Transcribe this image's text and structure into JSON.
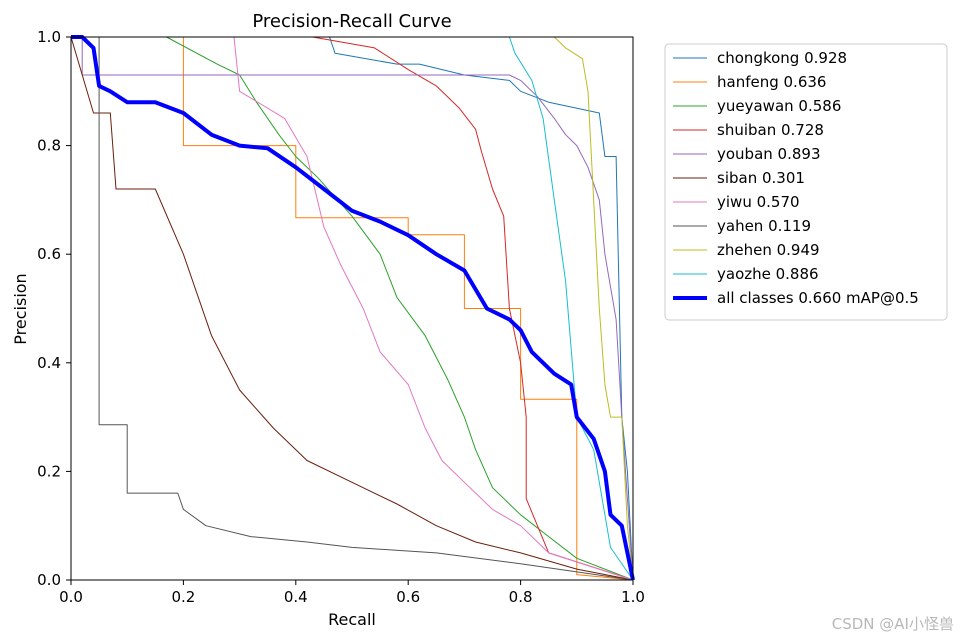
{
  "chart_data": {
    "type": "line",
    "title": "Precision-Recall Curve",
    "xlabel": "Recall",
    "ylabel": "Precision",
    "xlim": [
      0,
      1
    ],
    "ylim": [
      0,
      1
    ],
    "xticks": [
      "0.0",
      "0.2",
      "0.4",
      "0.6",
      "0.8",
      "1.0"
    ],
    "yticks": [
      "0.0",
      "0.2",
      "0.4",
      "0.6",
      "0.8",
      "1.0"
    ],
    "legend_position": "outside-right",
    "series": [
      {
        "name": "chongkong 0.928",
        "color": "#1f77b4",
        "width": 1,
        "points": [
          [
            0,
            1
          ],
          [
            0.46,
            1
          ],
          [
            0.47,
            0.97
          ],
          [
            0.58,
            0.95
          ],
          [
            0.62,
            0.95
          ],
          [
            0.7,
            0.93
          ],
          [
            0.78,
            0.92
          ],
          [
            0.8,
            0.9
          ],
          [
            0.85,
            0.88
          ],
          [
            0.94,
            0.86
          ],
          [
            0.95,
            0.78
          ],
          [
            0.97,
            0.78
          ],
          [
            0.98,
            0.3
          ],
          [
            0.99,
            0.2
          ],
          [
            1,
            0
          ]
        ]
      },
      {
        "name": "hanfeng 0.636",
        "color": "#ff7f0e",
        "width": 1,
        "points": [
          [
            0,
            1
          ],
          [
            0.2,
            1
          ],
          [
            0.2,
            0.8
          ],
          [
            0.4,
            0.8
          ],
          [
            0.4,
            0.667
          ],
          [
            0.6,
            0.667
          ],
          [
            0.6,
            0.636
          ],
          [
            0.7,
            0.636
          ],
          [
            0.7,
            0.5
          ],
          [
            0.8,
            0.5
          ],
          [
            0.8,
            0.333
          ],
          [
            0.9,
            0.333
          ],
          [
            0.9,
            0.01
          ],
          [
            1,
            0
          ]
        ]
      },
      {
        "name": "yueyawan 0.586",
        "color": "#2ca02c",
        "width": 1,
        "points": [
          [
            0.17,
            1
          ],
          [
            0.26,
            0.95
          ],
          [
            0.3,
            0.93
          ],
          [
            0.33,
            0.88
          ],
          [
            0.37,
            0.82
          ],
          [
            0.4,
            0.78
          ],
          [
            0.44,
            0.74
          ],
          [
            0.5,
            0.67
          ],
          [
            0.55,
            0.6
          ],
          [
            0.58,
            0.52
          ],
          [
            0.63,
            0.45
          ],
          [
            0.67,
            0.37
          ],
          [
            0.7,
            0.3
          ],
          [
            0.72,
            0.24
          ],
          [
            0.75,
            0.17
          ],
          [
            0.8,
            0.12
          ],
          [
            0.85,
            0.08
          ],
          [
            0.9,
            0.04
          ],
          [
            1,
            0
          ]
        ]
      },
      {
        "name": "shuiban 0.728",
        "color": "#d62728",
        "width": 1,
        "points": [
          [
            0.43,
            1
          ],
          [
            0.54,
            0.98
          ],
          [
            0.6,
            0.94
          ],
          [
            0.65,
            0.91
          ],
          [
            0.69,
            0.87
          ],
          [
            0.72,
            0.83
          ],
          [
            0.73,
            0.79
          ],
          [
            0.75,
            0.72
          ],
          [
            0.77,
            0.67
          ],
          [
            0.78,
            0.5
          ],
          [
            0.8,
            0.4
          ],
          [
            0.81,
            0.3
          ],
          [
            0.81,
            0.15
          ],
          [
            0.85,
            0.05
          ],
          [
            1,
            0
          ]
        ]
      },
      {
        "name": "youban 0.893",
        "color": "#9467bd",
        "width": 1,
        "points": [
          [
            0,
            1
          ],
          [
            0.02,
            1
          ],
          [
            0.02,
            0.93
          ],
          [
            0.78,
            0.93
          ],
          [
            0.8,
            0.92
          ],
          [
            0.83,
            0.89
          ],
          [
            0.86,
            0.85
          ],
          [
            0.88,
            0.82
          ],
          [
            0.9,
            0.8
          ],
          [
            0.92,
            0.76
          ],
          [
            0.94,
            0.7
          ],
          [
            0.95,
            0.6
          ],
          [
            0.97,
            0.48
          ],
          [
            0.98,
            0.3
          ],
          [
            0.99,
            0.15
          ],
          [
            1,
            0
          ]
        ]
      },
      {
        "name": "siban 0.301",
        "color": "#6b1f0b",
        "width": 1,
        "points": [
          [
            0,
            1
          ],
          [
            0.04,
            0.86
          ],
          [
            0.07,
            0.86
          ],
          [
            0.08,
            0.72
          ],
          [
            0.15,
            0.72
          ],
          [
            0.2,
            0.6
          ],
          [
            0.25,
            0.45
          ],
          [
            0.3,
            0.35
          ],
          [
            0.36,
            0.28
          ],
          [
            0.42,
            0.22
          ],
          [
            0.5,
            0.18
          ],
          [
            0.58,
            0.14
          ],
          [
            0.65,
            0.1
          ],
          [
            0.72,
            0.07
          ],
          [
            0.8,
            0.05
          ],
          [
            0.9,
            0.02
          ],
          [
            1,
            0
          ]
        ]
      },
      {
        "name": "yiwu 0.570",
        "color": "#e377c2",
        "width": 1,
        "points": [
          [
            0.29,
            1
          ],
          [
            0.3,
            0.9
          ],
          [
            0.38,
            0.85
          ],
          [
            0.42,
            0.78
          ],
          [
            0.45,
            0.65
          ],
          [
            0.48,
            0.58
          ],
          [
            0.52,
            0.5
          ],
          [
            0.55,
            0.42
          ],
          [
            0.6,
            0.36
          ],
          [
            0.63,
            0.28
          ],
          [
            0.66,
            0.22
          ],
          [
            0.7,
            0.18
          ],
          [
            0.75,
            0.13
          ],
          [
            0.8,
            0.1
          ],
          [
            0.85,
            0.05
          ],
          [
            1,
            0
          ]
        ]
      },
      {
        "name": "yahen 0.119",
        "color": "#555555",
        "width": 1,
        "points": [
          [
            0,
            1
          ],
          [
            0.05,
            1
          ],
          [
            0.05,
            0.286
          ],
          [
            0.1,
            0.286
          ],
          [
            0.1,
            0.16
          ],
          [
            0.19,
            0.16
          ],
          [
            0.2,
            0.13
          ],
          [
            0.24,
            0.1
          ],
          [
            0.32,
            0.08
          ],
          [
            0.42,
            0.07
          ],
          [
            0.5,
            0.06
          ],
          [
            0.65,
            0.05
          ],
          [
            0.8,
            0.03
          ],
          [
            1,
            0
          ]
        ]
      },
      {
        "name": "zhehen 0.949",
        "color": "#bcbd22",
        "width": 1,
        "points": [
          [
            0.86,
            1
          ],
          [
            0.88,
            0.98
          ],
          [
            0.91,
            0.96
          ],
          [
            0.92,
            0.9
          ],
          [
            0.94,
            0.5
          ],
          [
            0.95,
            0.36
          ],
          [
            0.96,
            0.3
          ],
          [
            0.98,
            0.3
          ],
          [
            0.99,
            0.1
          ],
          [
            1,
            0
          ]
        ]
      },
      {
        "name": "yaozhe 0.886",
        "color": "#17becf",
        "width": 1,
        "points": [
          [
            0.78,
            1
          ],
          [
            0.79,
            0.97
          ],
          [
            0.82,
            0.92
          ],
          [
            0.84,
            0.85
          ],
          [
            0.86,
            0.7
          ],
          [
            0.88,
            0.55
          ],
          [
            0.9,
            0.3
          ],
          [
            0.93,
            0.24
          ],
          [
            0.96,
            0.06
          ],
          [
            1,
            0
          ]
        ]
      },
      {
        "name": "all classes 0.660 mAP@0.5",
        "color": "#0000ff",
        "width": 4,
        "points": [
          [
            0,
            1
          ],
          [
            0.02,
            1
          ],
          [
            0.04,
            0.98
          ],
          [
            0.05,
            0.91
          ],
          [
            0.07,
            0.9
          ],
          [
            0.1,
            0.88
          ],
          [
            0.15,
            0.88
          ],
          [
            0.2,
            0.86
          ],
          [
            0.25,
            0.82
          ],
          [
            0.3,
            0.8
          ],
          [
            0.35,
            0.795
          ],
          [
            0.4,
            0.76
          ],
          [
            0.45,
            0.72
          ],
          [
            0.5,
            0.68
          ],
          [
            0.55,
            0.66
          ],
          [
            0.6,
            0.635
          ],
          [
            0.65,
            0.6
          ],
          [
            0.7,
            0.57
          ],
          [
            0.74,
            0.5
          ],
          [
            0.78,
            0.48
          ],
          [
            0.8,
            0.46
          ],
          [
            0.82,
            0.42
          ],
          [
            0.86,
            0.38
          ],
          [
            0.89,
            0.36
          ],
          [
            0.9,
            0.3
          ],
          [
            0.93,
            0.26
          ],
          [
            0.95,
            0.2
          ],
          [
            0.96,
            0.12
          ],
          [
            0.98,
            0.1
          ],
          [
            1,
            0
          ]
        ]
      }
    ]
  },
  "watermark": "CSDN @AI小怪兽"
}
